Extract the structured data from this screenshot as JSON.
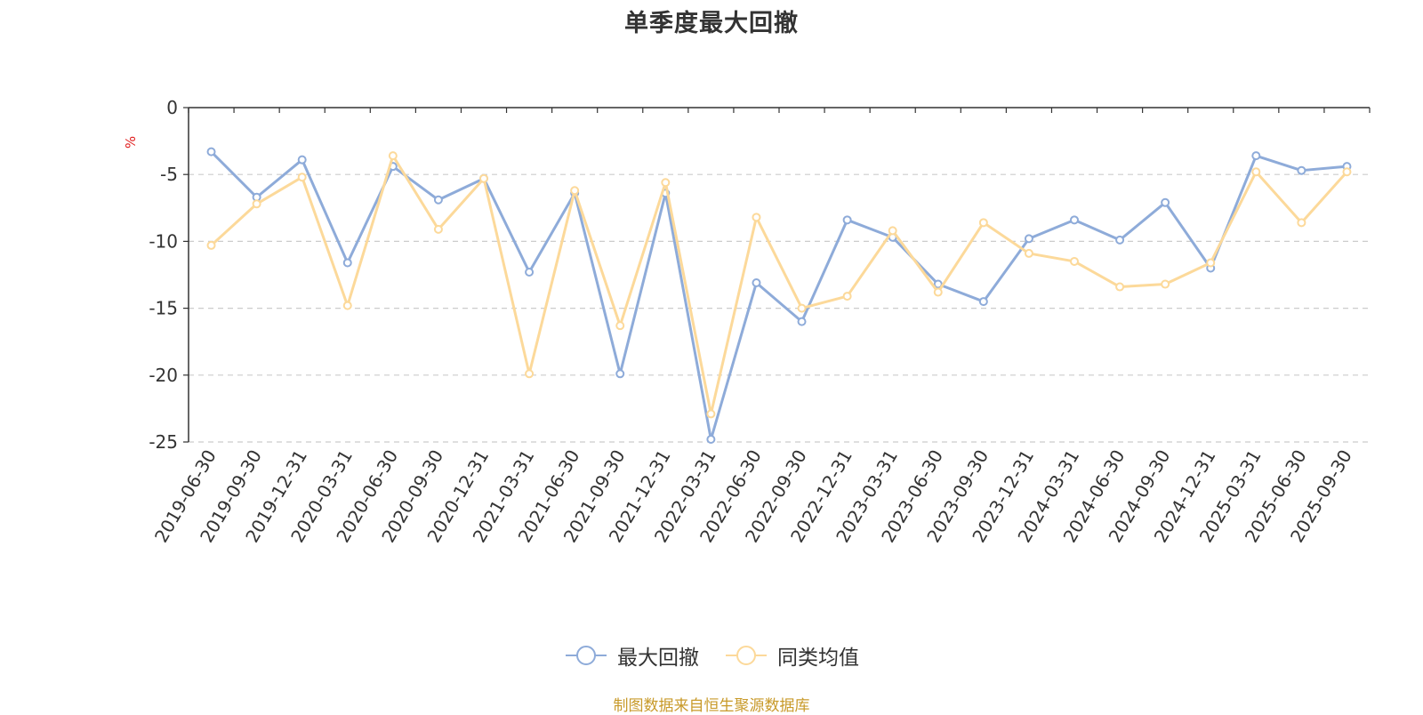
{
  "chart_data": {
    "type": "line",
    "title": "单季度最大回撤",
    "ylabel": "%",
    "xlabel": "",
    "ylim": [
      -25,
      0
    ],
    "yticks": [
      "0",
      "-5",
      "-10",
      "-15",
      "-20",
      "-25"
    ],
    "grid": true,
    "legend_position": "bottom-center",
    "x": [
      "2019-06-30",
      "2019-09-30",
      "2019-12-31",
      "2020-03-31",
      "2020-06-30",
      "2020-09-30",
      "2020-12-31",
      "2021-03-31",
      "2021-06-30",
      "2021-09-30",
      "2021-12-31",
      "2022-03-31",
      "2022-06-30",
      "2022-09-30",
      "2022-12-31",
      "2023-03-31",
      "2023-06-30",
      "2023-09-30",
      "2023-12-31",
      "2024-03-31",
      "2024-06-30",
      "2024-09-30",
      "2024-12-31",
      "2025-03-31",
      "2025-06-30",
      "2025-09-30"
    ],
    "series": [
      {
        "name": "最大回撤",
        "color": "#8eabd9",
        "values": [
          -3.3,
          -6.7,
          -3.9,
          -11.6,
          -4.4,
          -6.9,
          -5.3,
          -12.3,
          -6.4,
          -19.9,
          -6.4,
          -24.8,
          -13.1,
          -16.0,
          -8.4,
          -9.7,
          -13.2,
          -14.5,
          -9.8,
          -8.4,
          -9.9,
          -7.1,
          -12.0,
          -3.6,
          -4.7,
          -4.4
        ]
      },
      {
        "name": "同类均值",
        "color": "#fcd99a",
        "values": [
          -10.3,
          -7.2,
          -5.2,
          -14.8,
          -3.6,
          -9.1,
          -5.3,
          -19.9,
          -6.2,
          -16.3,
          -5.6,
          -22.9,
          -8.2,
          -15.0,
          -14.1,
          -9.2,
          -13.8,
          -8.6,
          -10.9,
          -11.5,
          -13.4,
          -13.2,
          -11.6,
          -4.8,
          -8.6,
          -4.8
        ]
      }
    ]
  },
  "source_note": "制图数据来自恒生聚源数据库"
}
